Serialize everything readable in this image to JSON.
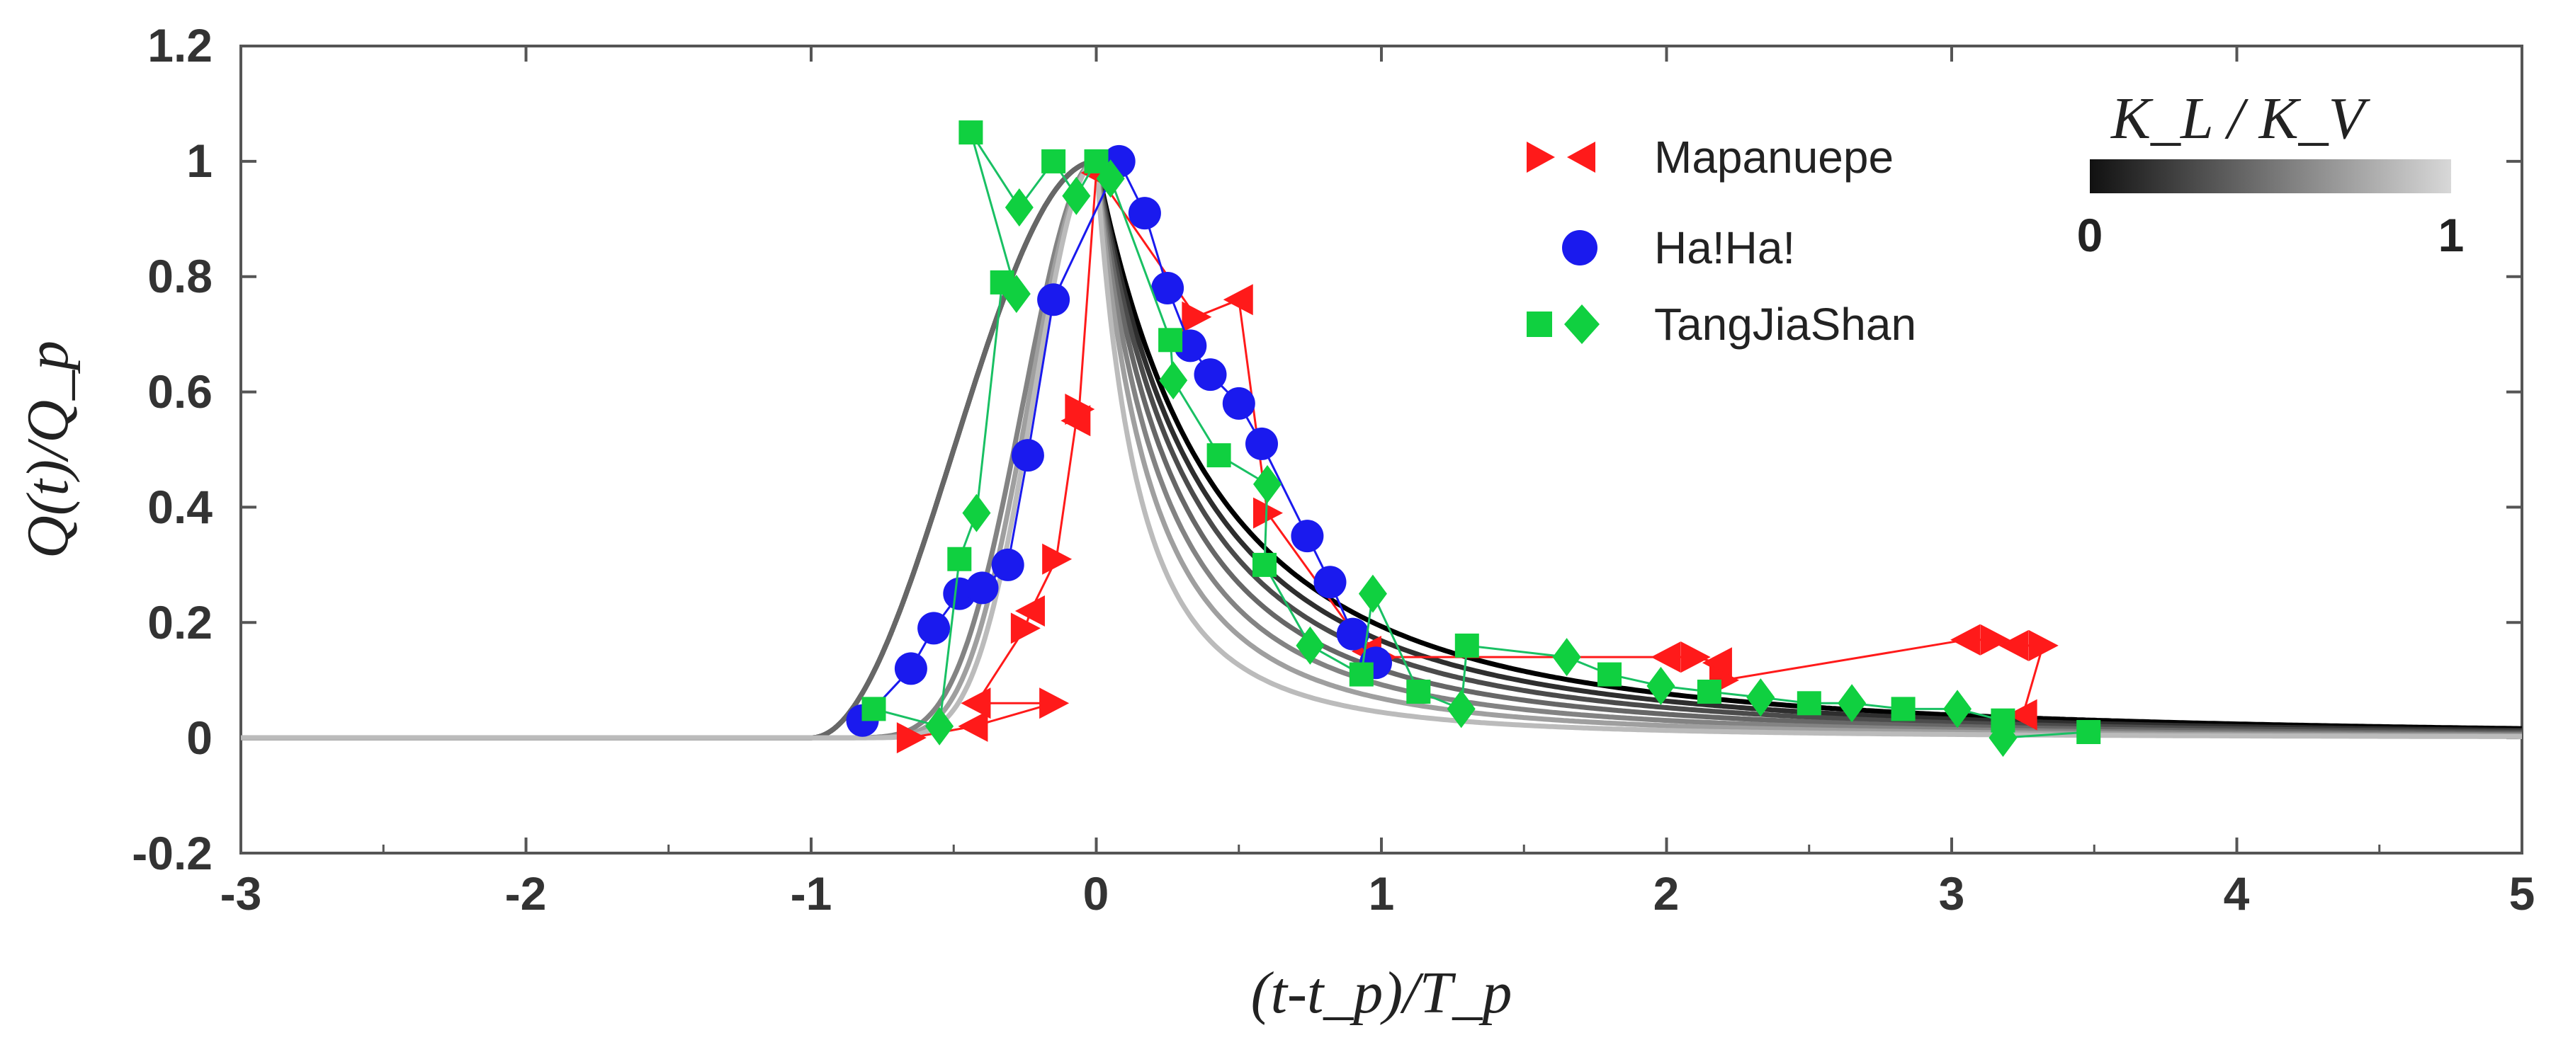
{
  "chart_data": {
    "type": "line",
    "xlabel": "(t-t_p)/T_p",
    "ylabel": "Q(t)/Q_p",
    "xlim": [
      -3,
      5
    ],
    "ylim": [
      -0.2,
      1.2
    ],
    "x_ticks": [
      "-3",
      "-2",
      "-1",
      "0",
      "1",
      "2",
      "3",
      "4",
      "5"
    ],
    "y_ticks": [
      "1.2",
      "1",
      "0.8",
      "0.6",
      "0.4",
      "0.2",
      "0",
      "-0.2"
    ],
    "grid": false,
    "colors": {
      "mapanuepe": "#ff1a1a",
      "haha": "#1a1aee",
      "tangjiashan": "#19c063",
      "tangjiashan_marker": "#10d040"
    },
    "model_curves": {
      "parameter_label": "K_L / K_V",
      "gradient_start_label": "0",
      "gradient_end_label": "1",
      "colors": [
        "#000000",
        "#2e2e2e",
        "#4b4b4b",
        "#676767",
        "#838383",
        "#9f9f9f",
        "#bbbbbb"
      ],
      "k_values": [
        0,
        0.17,
        0.33,
        0.5,
        0.67,
        0.83,
        1
      ]
    },
    "legend": [
      {
        "label": "Mapanuepe",
        "marker": "triangles",
        "color": "#ff1a1a"
      },
      {
        "label": "Ha!Ha!",
        "marker": "circle",
        "color": "#1a1aee"
      },
      {
        "label": "TangJiaShan",
        "marker": "square-diamond",
        "color": "#19c063"
      }
    ],
    "series": [
      {
        "name": "Mapanuepe",
        "points": [
          [
            -0.65,
            0.0
          ],
          [
            -0.43,
            0.02
          ],
          [
            -0.15,
            0.06
          ],
          [
            -0.42,
            0.06
          ],
          [
            -0.25,
            0.19
          ],
          [
            -0.23,
            0.22
          ],
          [
            -0.14,
            0.31
          ],
          [
            -0.07,
            0.55
          ],
          [
            -0.06,
            0.57
          ],
          [
            0.0,
            0.98
          ],
          [
            0.35,
            0.73
          ],
          [
            0.5,
            0.76
          ],
          [
            0.6,
            0.39
          ],
          [
            0.95,
            0.15
          ],
          [
            1.0,
            0.14
          ],
          [
            2.0,
            0.14
          ],
          [
            2.1,
            0.14
          ],
          [
            2.18,
            0.13
          ],
          [
            2.2,
            0.1
          ],
          [
            3.05,
            0.17
          ],
          [
            3.15,
            0.17
          ],
          [
            3.22,
            0.16
          ],
          [
            3.32,
            0.16
          ],
          [
            3.25,
            0.04
          ]
        ]
      },
      {
        "name": "Ha!Ha!",
        "points": [
          [
            -0.82,
            0.03
          ],
          [
            -0.65,
            0.12
          ],
          [
            -0.57,
            0.19
          ],
          [
            -0.48,
            0.25
          ],
          [
            -0.4,
            0.26
          ],
          [
            -0.31,
            0.3
          ],
          [
            -0.24,
            0.49
          ],
          [
            -0.15,
            0.76
          ],
          [
            0.08,
            1.0
          ],
          [
            0.17,
            0.91
          ],
          [
            0.25,
            0.78
          ],
          [
            0.33,
            0.68
          ],
          [
            0.4,
            0.63
          ],
          [
            0.5,
            0.58
          ],
          [
            0.58,
            0.51
          ],
          [
            0.74,
            0.35
          ],
          [
            0.82,
            0.27
          ],
          [
            0.9,
            0.18
          ],
          [
            0.98,
            0.13
          ]
        ]
      },
      {
        "name": "TangJiaShan",
        "points": [
          [
            -0.78,
            0.05
          ],
          [
            -0.55,
            0.02
          ],
          [
            -0.48,
            0.31
          ],
          [
            -0.42,
            0.39
          ],
          [
            -0.33,
            0.79
          ],
          [
            -0.28,
            0.77
          ],
          [
            -0.44,
            1.05
          ],
          [
            -0.27,
            0.92
          ],
          [
            -0.15,
            1.0
          ],
          [
            -0.07,
            0.94
          ],
          [
            0.0,
            1.0
          ],
          [
            0.05,
            0.97
          ],
          [
            0.26,
            0.69
          ],
          [
            0.27,
            0.62
          ],
          [
            0.43,
            0.49
          ],
          [
            0.6,
            0.44
          ],
          [
            0.59,
            0.3
          ],
          [
            0.75,
            0.16
          ],
          [
            0.93,
            0.11
          ],
          [
            0.97,
            0.25
          ],
          [
            1.13,
            0.08
          ],
          [
            1.28,
            0.05
          ],
          [
            1.3,
            0.16
          ],
          [
            1.65,
            0.14
          ],
          [
            1.8,
            0.11
          ],
          [
            1.98,
            0.09
          ],
          [
            2.15,
            0.08
          ],
          [
            2.33,
            0.07
          ],
          [
            2.5,
            0.06
          ],
          [
            2.65,
            0.06
          ],
          [
            2.83,
            0.05
          ],
          [
            3.02,
            0.05
          ],
          [
            3.18,
            0.03
          ],
          [
            3.18,
            0.0
          ],
          [
            3.48,
            0.01
          ]
        ]
      }
    ]
  }
}
